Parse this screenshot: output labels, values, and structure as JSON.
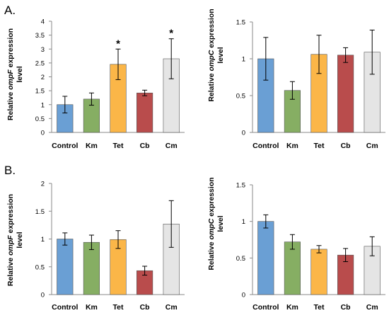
{
  "panels": [
    {
      "label": "A."
    },
    {
      "label": "B."
    }
  ],
  "colors": {
    "Control": "#6A9FD4",
    "Km": "#86AE63",
    "Tet": "#FBB648",
    "Cb": "#B94C4C",
    "Cm": "#E5E5E5"
  },
  "chart_data": [
    {
      "type": "bar",
      "panel": "A.",
      "categories": [
        "Control",
        "Km",
        "Tet",
        "Cb",
        "Cm"
      ],
      "values": [
        1.0,
        1.2,
        2.45,
        1.42,
        2.65
      ],
      "errors": [
        0.3,
        0.22,
        0.55,
        0.1,
        0.72
      ],
      "annotations": [
        "",
        "",
        "*",
        "",
        "*"
      ],
      "ylabel_pre": "Relative ",
      "ylabel_italic": "ompF",
      "ylabel_post": " expression",
      "ylabel_line2": "level",
      "ylim": [
        0,
        4
      ],
      "yticks": [
        0,
        0.5,
        1,
        1.5,
        2,
        2.5,
        3,
        3.5,
        4
      ],
      "ytick_labels": [
        "0",
        "0.5",
        "1",
        "1.5",
        "2",
        "2.5",
        "3",
        "3.5",
        "4"
      ]
    },
    {
      "type": "bar",
      "panel": "A.",
      "categories": [
        "Control",
        "Km",
        "Tet",
        "Cb",
        "Cm"
      ],
      "values": [
        1.0,
        0.57,
        1.06,
        1.05,
        1.09
      ],
      "errors": [
        0.29,
        0.12,
        0.26,
        0.1,
        0.3
      ],
      "annotations": [
        "",
        "",
        "",
        "",
        ""
      ],
      "ylabel_pre": "Relative ",
      "ylabel_italic": "ompC",
      "ylabel_post": " expression",
      "ylabel_line2": "level",
      "ylim": [
        0,
        1.5
      ],
      "yticks": [
        0,
        0.5,
        1,
        1.5
      ],
      "ytick_labels": [
        "0",
        "0.5",
        "1",
        "1.5"
      ]
    },
    {
      "type": "bar",
      "panel": "B.",
      "categories": [
        "Control",
        "Km",
        "Tet",
        "Cb",
        "Cm"
      ],
      "values": [
        1.0,
        0.94,
        0.99,
        0.43,
        1.27
      ],
      "errors": [
        0.11,
        0.13,
        0.16,
        0.08,
        0.42
      ],
      "annotations": [
        "",
        "",
        "",
        "",
        ""
      ],
      "ylabel_pre": "Relative ",
      "ylabel_italic": "ompF",
      "ylabel_post": " expression",
      "ylabel_line2": "level",
      "ylim": [
        0,
        2
      ],
      "yticks": [
        0,
        0.5,
        1,
        1.5,
        2
      ],
      "ytick_labels": [
        "0",
        "0.5",
        "1",
        "1.5",
        "2"
      ]
    },
    {
      "type": "bar",
      "panel": "B.",
      "categories": [
        "Control",
        "Km",
        "Tet",
        "Cb",
        "Cm"
      ],
      "values": [
        1.0,
        0.72,
        0.62,
        0.54,
        0.66
      ],
      "errors": [
        0.09,
        0.1,
        0.05,
        0.09,
        0.13
      ],
      "annotations": [
        "",
        "",
        "",
        "",
        ""
      ],
      "ylabel_pre": "Relative ",
      "ylabel_italic": "ompC",
      "ylabel_post": " expression",
      "ylabel_line2": "level",
      "ylim": [
        0,
        1.5
      ],
      "yticks": [
        0,
        0.5,
        1,
        1.5
      ],
      "ytick_labels": [
        "0",
        "0.5",
        "1",
        "1.5"
      ]
    }
  ]
}
